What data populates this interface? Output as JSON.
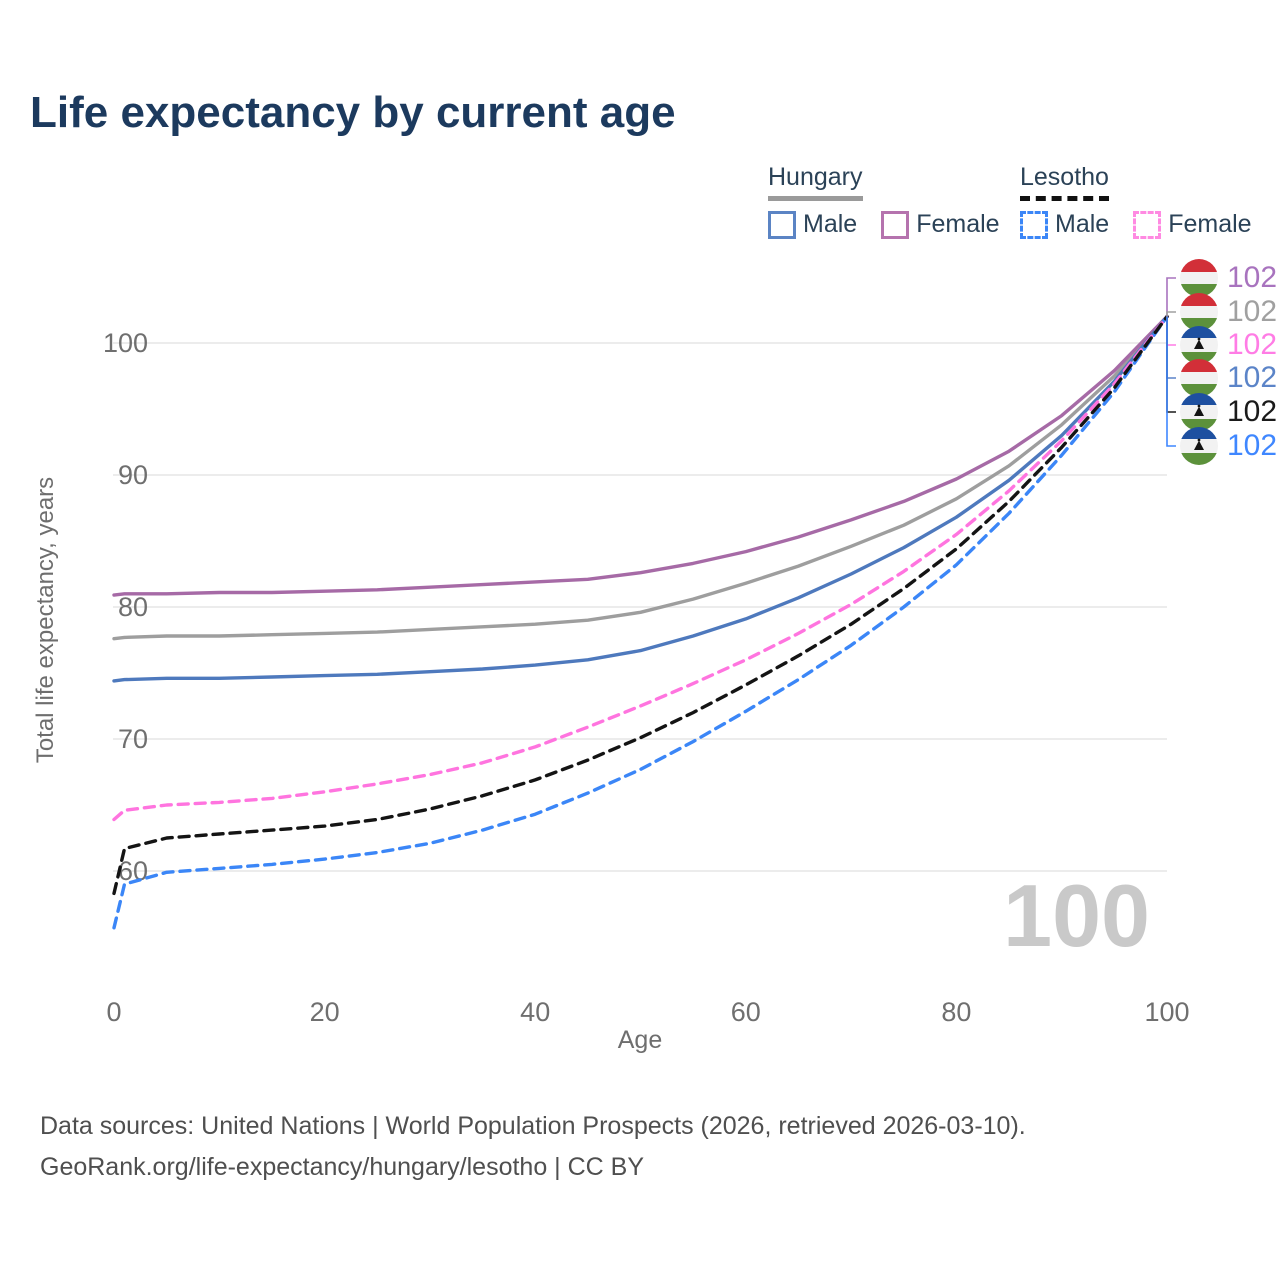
{
  "title": "Life expectancy by current age",
  "legend": {
    "hungary": {
      "name": "Hungary",
      "male": "Male",
      "female": "Female"
    },
    "lesotho": {
      "name": "Lesotho",
      "male": "Male",
      "female": "Female"
    }
  },
  "watermark": {
    "text": "100"
  },
  "footer": {
    "line1": "Data sources: United Nations | World Population Prospects (2026, retrieved 2026-03-10).",
    "line2": "GeoRank.org/life-expectancy/hungary/lesotho | CC BY"
  },
  "chart_data": {
    "type": "line",
    "title": "Life expectancy by current age",
    "xlabel": "Age",
    "ylabel": "Total life expectancy, years",
    "xlim": [
      0,
      100
    ],
    "ylim": [
      55,
      104
    ],
    "grid": "horizontal-only",
    "x_ticks": [
      0,
      20,
      40,
      60,
      80,
      100
    ],
    "y_ticks": [
      60,
      70,
      80,
      90,
      100
    ],
    "x": [
      0,
      1,
      5,
      10,
      15,
      20,
      25,
      30,
      35,
      40,
      45,
      50,
      55,
      60,
      65,
      70,
      75,
      80,
      85,
      90,
      95,
      100
    ],
    "series": [
      {
        "name": "Hungary Female",
        "country": "Hungary",
        "sex": "Female",
        "style": "solid",
        "color": "#a66aa6",
        "values": [
          80.9,
          81.0,
          81.0,
          81.1,
          81.1,
          81.2,
          81.3,
          81.5,
          81.7,
          81.9,
          82.1,
          82.6,
          83.3,
          84.2,
          85.3,
          86.6,
          88.0,
          89.7,
          91.8,
          94.5,
          97.9,
          102
        ]
      },
      {
        "name": "Hungary",
        "country": "Hungary",
        "sex": "Both",
        "style": "solid",
        "color": "#9e9e9e",
        "values": [
          77.6,
          77.7,
          77.8,
          77.8,
          77.9,
          78.0,
          78.1,
          78.3,
          78.5,
          78.7,
          79.0,
          79.6,
          80.6,
          81.8,
          83.1,
          84.6,
          86.2,
          88.2,
          90.7,
          93.8,
          97.5,
          102
        ]
      },
      {
        "name": "Hungary Male",
        "country": "Hungary",
        "sex": "Male",
        "style": "solid",
        "color": "#4e79bd",
        "values": [
          74.4,
          74.5,
          74.6,
          74.6,
          74.7,
          74.8,
          74.9,
          75.1,
          75.3,
          75.6,
          76.0,
          76.7,
          77.8,
          79.1,
          80.7,
          82.5,
          84.5,
          86.8,
          89.6,
          93.0,
          97.1,
          102
        ]
      },
      {
        "name": "Lesotho Female",
        "country": "Lesotho",
        "sex": "Female",
        "style": "dashed",
        "color": "#ff74df",
        "values": [
          63.9,
          64.6,
          65.0,
          65.2,
          65.5,
          66.0,
          66.6,
          67.3,
          68.2,
          69.4,
          70.9,
          72.5,
          74.2,
          76.0,
          78.0,
          80.2,
          82.7,
          85.5,
          88.8,
          92.6,
          96.9,
          102
        ]
      },
      {
        "name": "Lesotho",
        "country": "Lesotho",
        "sex": "Both",
        "style": "dashed",
        "color": "#141414",
        "values": [
          58.3,
          61.7,
          62.5,
          62.8,
          63.1,
          63.4,
          63.9,
          64.7,
          65.7,
          66.9,
          68.4,
          70.1,
          72.0,
          74.1,
          76.3,
          78.7,
          81.4,
          84.4,
          88.0,
          92.1,
          96.6,
          102
        ]
      },
      {
        "name": "Lesotho Male",
        "country": "Lesotho",
        "sex": "Male",
        "style": "dashed",
        "color": "#3b86f7",
        "values": [
          55.7,
          59.0,
          59.9,
          60.2,
          60.5,
          60.9,
          61.4,
          62.1,
          63.1,
          64.3,
          65.9,
          67.7,
          69.8,
          72.1,
          74.5,
          77.1,
          80.0,
          83.2,
          87.1,
          91.5,
          96.3,
          102
        ]
      }
    ],
    "end_value_labels": [
      {
        "text": "102",
        "flag": "hungary",
        "series": "Hungary Female",
        "color": "#a873be"
      },
      {
        "text": "102",
        "flag": "hungary",
        "series": "Hungary",
        "color": "#a0a0a0"
      },
      {
        "text": "102",
        "flag": "lesotho",
        "series": "Lesotho Female",
        "color": "#ff7ce5"
      },
      {
        "text": "102",
        "flag": "hungary",
        "series": "Hungary Male",
        "color": "#5b84c8"
      },
      {
        "text": "102",
        "flag": "lesotho",
        "series": "Lesotho",
        "color": "#1a1a1a"
      },
      {
        "text": "102",
        "flag": "lesotho",
        "series": "Lesotho Male",
        "color": "#3f87ff"
      }
    ]
  }
}
